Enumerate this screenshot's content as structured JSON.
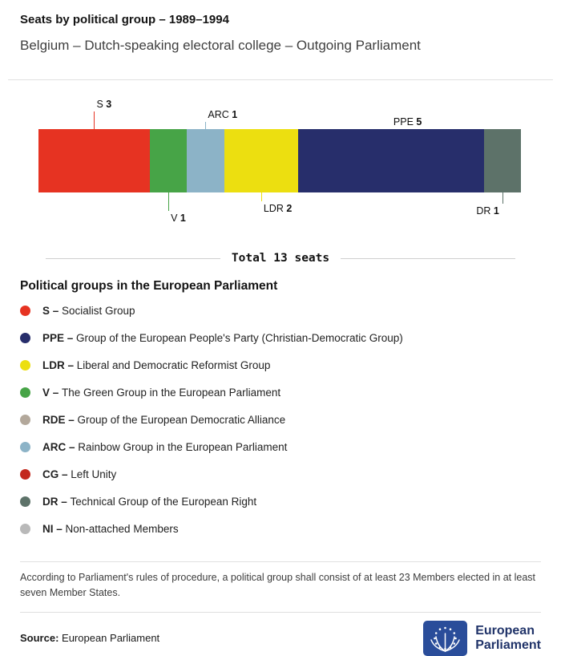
{
  "header": {
    "title": "Seats by political group – 1989–1994",
    "subtitle": "Belgium – Dutch-speaking electoral college – Outgoing Parliament"
  },
  "chart_data": {
    "type": "bar",
    "variant": "horizontal-stacked-seat-bar",
    "title": "Seats by political group – 1989–1994",
    "subtitle": "Belgium – Dutch-speaking electoral college – Outgoing Parliament",
    "total_seats": 13,
    "total_label": "Total 13 seats",
    "categories": [
      "S",
      "V",
      "ARC",
      "LDR",
      "PPE",
      "DR"
    ],
    "values": [
      3,
      1,
      1,
      2,
      5,
      1
    ],
    "segments": [
      {
        "group": "S",
        "seats": 3,
        "color": "#e63322",
        "callout": "above"
      },
      {
        "group": "V",
        "seats": 1,
        "color": "#47a447",
        "callout": "below"
      },
      {
        "group": "ARC",
        "seats": 1,
        "color": "#8cb3c7",
        "callout": "above"
      },
      {
        "group": "LDR",
        "seats": 2,
        "color": "#ecdf10",
        "callout": "below"
      },
      {
        "group": "PPE",
        "seats": 5,
        "color": "#272e6b",
        "callout": "above"
      },
      {
        "group": "DR",
        "seats": 1,
        "color": "#5d7269",
        "callout": "below"
      }
    ]
  },
  "legend": {
    "heading": "Political groups in the European Parliament",
    "items": [
      {
        "abbr": "S",
        "name": "Socialist Group",
        "color": "#e63322"
      },
      {
        "abbr": "PPE",
        "name": "Group of the European People's Party (Christian-Democratic Group)",
        "color": "#272e6b"
      },
      {
        "abbr": "LDR",
        "name": "Liberal and Democratic Reformist Group",
        "color": "#ecdf10"
      },
      {
        "abbr": "V",
        "name": "The Green Group in the European Parliament",
        "color": "#47a447"
      },
      {
        "abbr": "RDE",
        "name": "Group of the European Democratic Alliance",
        "color": "#b3a89b"
      },
      {
        "abbr": "ARC",
        "name": "Rainbow Group in the European Parliament",
        "color": "#8cb3c7"
      },
      {
        "abbr": "CG",
        "name": "Left Unity",
        "color": "#c3281d"
      },
      {
        "abbr": "DR",
        "name": "Technical Group of the European Right",
        "color": "#5d7269"
      },
      {
        "abbr": "NI",
        "name": "Non-attached Members",
        "color": "#b9b9b9"
      }
    ]
  },
  "footnote": "According to Parliament's rules of procedure, a political group shall consist of at least 23 Members elected in at least seven Member States.",
  "source": {
    "label": "Source:",
    "value": "European Parliament"
  },
  "logo": {
    "line1": "European",
    "line2": "Parliament",
    "icon": "eu-stars-hemicycle-icon"
  }
}
